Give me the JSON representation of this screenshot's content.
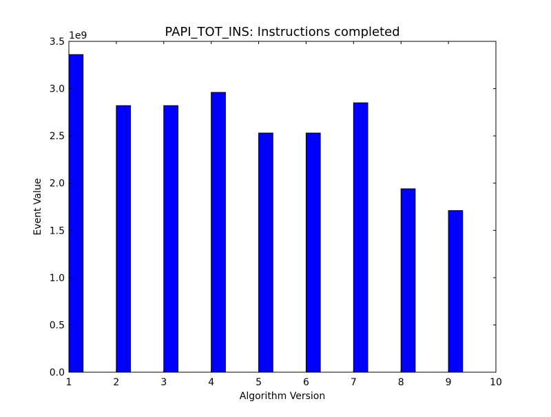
{
  "chart_data": {
    "type": "bar",
    "title": "PAPI_TOT_INS: Instructions completed",
    "xlabel": "Algorithm Version",
    "ylabel": "Event Value",
    "y_offset_label": "1e9",
    "xlim": [
      1,
      10
    ],
    "ylim": [
      0,
      3.5
    ],
    "x_ticks": [
      "1",
      "2",
      "3",
      "4",
      "5",
      "6",
      "7",
      "8",
      "9",
      "10"
    ],
    "y_ticks": [
      "0.0",
      "0.5",
      "1.0",
      "1.5",
      "2.0",
      "2.5",
      "3.0",
      "3.5"
    ],
    "categories": [
      1,
      2,
      3,
      4,
      5,
      6,
      7,
      8,
      9
    ],
    "values": [
      3.36,
      2.82,
      2.82,
      2.96,
      2.53,
      2.53,
      2.85,
      1.94,
      1.71
    ],
    "bar_width": 0.3,
    "bar_color": "#0000ff",
    "edge_color": "#000000",
    "grid": false,
    "legend": "none"
  }
}
